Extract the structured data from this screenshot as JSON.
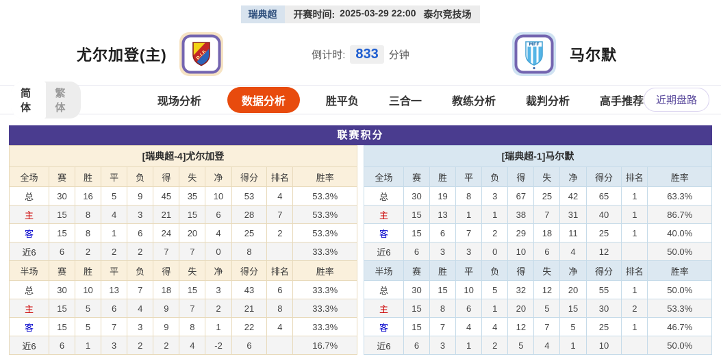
{
  "topbar": {
    "league_badge": "瑞典超",
    "kickoff_label": "开赛时间:",
    "kickoff_time": "2025-03-29 22:00",
    "venue": "泰尔竞技场"
  },
  "header": {
    "home_team": "尤尔加登(主)",
    "away_team": "马尔默",
    "home_logo_text": "D.I.F.",
    "away_logo_text": "MFF",
    "countdown_label": "倒计时:",
    "countdown_value": "833",
    "countdown_unit": "分钟"
  },
  "nav": {
    "lang_simplified": "简体",
    "lang_traditional": "繁体",
    "tabs": [
      {
        "label": "现场分析",
        "active": false
      },
      {
        "label": "数据分析",
        "active": true
      },
      {
        "label": "胜平负",
        "active": false
      },
      {
        "label": "三合一",
        "active": false
      },
      {
        "label": "教练分析",
        "active": false
      },
      {
        "label": "裁判分析",
        "active": false
      },
      {
        "label": "高手推荐",
        "active": false
      }
    ],
    "right_pill": "近期盘路"
  },
  "table": {
    "title": "联赛积分",
    "left": {
      "section_title": "[瑞典超-4]尤尔加登",
      "full": {
        "headers": [
          "全场",
          "赛",
          "胜",
          "平",
          "负",
          "得",
          "失",
          "净",
          "得分",
          "排名",
          "胜率"
        ],
        "rows": [
          {
            "label": "总",
            "type": "total",
            "cells": [
              "30",
              "16",
              "5",
              "9",
              "45",
              "35",
              "10",
              "53",
              "4",
              "53.3%"
            ]
          },
          {
            "label": "主",
            "type": "home",
            "cells": [
              "15",
              "8",
              "4",
              "3",
              "21",
              "15",
              "6",
              "28",
              "7",
              "53.3%"
            ]
          },
          {
            "label": "客",
            "type": "away",
            "cells": [
              "15",
              "8",
              "1",
              "6",
              "24",
              "20",
              "4",
              "25",
              "2",
              "53.3%"
            ]
          },
          {
            "label": "近6",
            "type": "recent",
            "cells": [
              "6",
              "2",
              "2",
              "2",
              "7",
              "7",
              "0",
              "8",
              "",
              "33.3%"
            ]
          }
        ]
      },
      "half": {
        "headers": [
          "半场",
          "赛",
          "胜",
          "平",
          "负",
          "得",
          "失",
          "净",
          "得分",
          "排名",
          "胜率"
        ],
        "rows": [
          {
            "label": "总",
            "type": "total",
            "cells": [
              "30",
              "10",
              "13",
              "7",
              "18",
              "15",
              "3",
              "43",
              "6",
              "33.3%"
            ]
          },
          {
            "label": "主",
            "type": "home",
            "cells": [
              "15",
              "5",
              "6",
              "4",
              "9",
              "7",
              "2",
              "21",
              "8",
              "33.3%"
            ]
          },
          {
            "label": "客",
            "type": "away",
            "cells": [
              "15",
              "5",
              "7",
              "3",
              "9",
              "8",
              "1",
              "22",
              "4",
              "33.3%"
            ]
          },
          {
            "label": "近6",
            "type": "recent",
            "cells": [
              "6",
              "1",
              "3",
              "2",
              "2",
              "4",
              "-2",
              "6",
              "",
              "16.7%"
            ]
          }
        ]
      }
    },
    "right": {
      "section_title": "[瑞典超-1]马尔默",
      "full": {
        "headers": [
          "全场",
          "赛",
          "胜",
          "平",
          "负",
          "得",
          "失",
          "净",
          "得分",
          "排名",
          "胜率"
        ],
        "rows": [
          {
            "label": "总",
            "type": "total",
            "cells": [
              "30",
              "19",
              "8",
              "3",
              "67",
              "25",
              "42",
              "65",
              "1",
              "63.3%"
            ]
          },
          {
            "label": "主",
            "type": "home",
            "cells": [
              "15",
              "13",
              "1",
              "1",
              "38",
              "7",
              "31",
              "40",
              "1",
              "86.7%"
            ]
          },
          {
            "label": "客",
            "type": "away",
            "cells": [
              "15",
              "6",
              "7",
              "2",
              "29",
              "18",
              "11",
              "25",
              "1",
              "40.0%"
            ]
          },
          {
            "label": "近6",
            "type": "recent",
            "cells": [
              "6",
              "3",
              "3",
              "0",
              "10",
              "6",
              "4",
              "12",
              "",
              "50.0%"
            ]
          }
        ]
      },
      "half": {
        "headers": [
          "半场",
          "赛",
          "胜",
          "平",
          "负",
          "得",
          "失",
          "净",
          "得分",
          "排名",
          "胜率"
        ],
        "rows": [
          {
            "label": "总",
            "type": "total",
            "cells": [
              "30",
              "15",
              "10",
              "5",
              "32",
              "12",
              "20",
              "55",
              "1",
              "50.0%"
            ]
          },
          {
            "label": "主",
            "type": "home",
            "cells": [
              "15",
              "8",
              "6",
              "1",
              "20",
              "5",
              "15",
              "30",
              "2",
              "53.3%"
            ]
          },
          {
            "label": "客",
            "type": "away",
            "cells": [
              "15",
              "7",
              "4",
              "4",
              "12",
              "7",
              "5",
              "25",
              "1",
              "46.7%"
            ]
          },
          {
            "label": "近6",
            "type": "recent",
            "cells": [
              "6",
              "3",
              "1",
              "2",
              "5",
              "4",
              "1",
              "10",
              "",
              "50.0%"
            ]
          }
        ]
      }
    }
  },
  "colors": {
    "table_header_purple": "#4a3c8f",
    "home_section_cream": "#faf0dc",
    "away_section_blue": "#d9e7f1",
    "active_tab_orange": "#e84b0d",
    "home_row_red": "#cc0000",
    "away_row_blue": "#0000cc",
    "countdown_blue": "#1f5ed0",
    "league_badge_bg": "#d8e3ee",
    "recent_pill_purple": "#5a4a9c"
  }
}
